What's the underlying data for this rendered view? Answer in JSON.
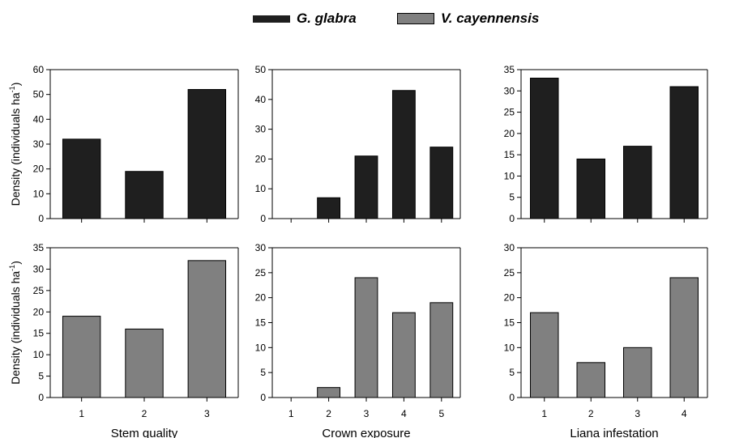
{
  "legend": [
    {
      "name": "G. glabra",
      "color": "#1f1f1f"
    },
    {
      "name": "V. cayennensis",
      "color": "#808080"
    }
  ],
  "y_axis_label": {
    "prefix": "Density (individuals ha",
    "superscript": "-1",
    "suffix": ")"
  },
  "chart_data": [
    {
      "type": "bar",
      "series": "G. glabra",
      "color": "#1f1f1f",
      "categories": [
        "1",
        "2",
        "3"
      ],
      "values": [
        32,
        19,
        52
      ],
      "ylim": [
        0,
        60
      ],
      "yticks": [
        0,
        10,
        20,
        30,
        40,
        50,
        60
      ],
      "xlabel": ""
    },
    {
      "type": "bar",
      "series": "G. glabra",
      "color": "#1f1f1f",
      "categories": [
        "1",
        "2",
        "3",
        "4",
        "5"
      ],
      "values": [
        0,
        7,
        21,
        43,
        24
      ],
      "ylim": [
        0,
        50
      ],
      "yticks": [
        0,
        10,
        20,
        30,
        40,
        50
      ],
      "xlabel": ""
    },
    {
      "type": "bar",
      "series": "G. glabra",
      "color": "#1f1f1f",
      "categories": [
        "1",
        "2",
        "3",
        "4"
      ],
      "values": [
        33,
        14,
        17,
        31
      ],
      "ylim": [
        0,
        35
      ],
      "yticks": [
        0,
        5,
        10,
        15,
        20,
        25,
        30,
        35
      ],
      "xlabel": ""
    },
    {
      "type": "bar",
      "series": "V. cayennensis",
      "color": "#808080",
      "categories": [
        "1",
        "2",
        "3"
      ],
      "values": [
        19,
        16,
        32
      ],
      "ylim": [
        0,
        35
      ],
      "yticks": [
        0,
        5,
        10,
        15,
        20,
        25,
        30,
        35
      ],
      "xlabel": "Stem quality"
    },
    {
      "type": "bar",
      "series": "V. cayennensis",
      "color": "#808080",
      "categories": [
        "1",
        "2",
        "3",
        "4",
        "5"
      ],
      "values": [
        0,
        2,
        24,
        17,
        19
      ],
      "ylim": [
        0,
        30
      ],
      "yticks": [
        0,
        5,
        10,
        15,
        20,
        25,
        30
      ],
      "xlabel": "Crown exposure"
    },
    {
      "type": "bar",
      "series": "V. cayennensis",
      "color": "#808080",
      "categories": [
        "1",
        "2",
        "3",
        "4"
      ],
      "values": [
        17,
        7,
        10,
        24
      ],
      "ylim": [
        0,
        30
      ],
      "yticks": [
        0,
        5,
        10,
        15,
        20,
        25,
        30
      ],
      "xlabel": "Liana infestation"
    }
  ]
}
